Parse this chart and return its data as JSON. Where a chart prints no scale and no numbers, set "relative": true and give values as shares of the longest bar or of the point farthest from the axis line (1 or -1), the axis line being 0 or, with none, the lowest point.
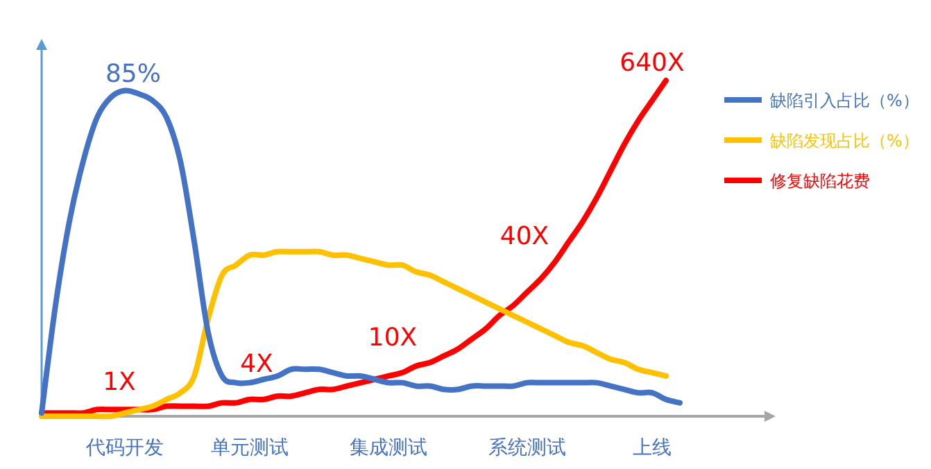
{
  "chart_data": {
    "type": "line",
    "relative": true,
    "categories": [
      null,
      null,
      null,
      null,
      null,
      null,
      "代码开发",
      null,
      null,
      null,
      null,
      null,
      null,
      null,
      null,
      "单元测试",
      null,
      null,
      null,
      null,
      null,
      null,
      null,
      null,
      null,
      "集成测试",
      null,
      null,
      null,
      null,
      null,
      null,
      null,
      null,
      null,
      "系统测试",
      null,
      null,
      null,
      null,
      null,
      null,
      null,
      null,
      "上线",
      null,
      null,
      null,
      null,
      null,
      null,
      null
    ],
    "legend": "right",
    "marker": "none",
    "line_style": "solid",
    "series": [
      {
        "name": "缺陷引入占比（%）",
        "color": "#4472c4",
        "values": [
          0.01,
          0.33,
          0.58,
          0.76,
          0.89,
          0.95,
          0.97,
          0.96,
          0.94,
          0.89,
          0.76,
          0.52,
          0.25,
          0.12,
          0.1,
          0.1,
          0.11,
          0.12,
          0.14,
          0.14,
          0.14,
          0.13,
          0.12,
          0.12,
          0.11,
          0.1,
          0.1,
          0.09,
          0.09,
          0.08,
          0.08,
          0.09,
          0.09,
          0.09,
          0.09,
          0.1,
          0.1,
          0.1,
          0.1,
          0.1,
          0.1,
          0.09,
          0.08,
          0.07,
          0.07,
          0.05,
          0.04,
          null,
          null,
          null,
          null,
          null
        ]
      },
      {
        "name": "缺陷发现占比（%）",
        "color": "#ffc000",
        "values": [
          0,
          0,
          0,
          0,
          0,
          0,
          0.01,
          0.02,
          0.03,
          0.05,
          0.07,
          0.12,
          0.29,
          0.42,
          0.45,
          0.48,
          0.48,
          0.49,
          0.49,
          0.49,
          0.49,
          0.48,
          0.48,
          0.47,
          0.46,
          0.45,
          0.45,
          0.43,
          0.42,
          0.4,
          0.38,
          0.36,
          0.34,
          0.32,
          0.3,
          0.28,
          0.26,
          0.24,
          0.22,
          0.21,
          0.19,
          0.17,
          0.16,
          0.14,
          0.13,
          0.12,
          null,
          null,
          null,
          null,
          null,
          null
        ]
      },
      {
        "name": "修复缺陷花费",
        "color": "#ff0000",
        "values": [
          0.01,
          0.01,
          0.01,
          0.01,
          0.02,
          0.02,
          0.02,
          0.02,
          0.02,
          0.03,
          0.03,
          0.03,
          0.03,
          0.04,
          0.04,
          0.05,
          0.05,
          0.06,
          0.06,
          0.07,
          0.08,
          0.08,
          0.09,
          0.1,
          0.11,
          0.12,
          0.13,
          0.15,
          0.16,
          0.18,
          0.2,
          0.23,
          0.26,
          0.3,
          0.33,
          0.37,
          0.41,
          0.46,
          0.52,
          0.58,
          0.65,
          0.73,
          0.81,
          0.88,
          0.94,
          1.0,
          null,
          null,
          null,
          null,
          null,
          null
        ]
      }
    ],
    "annotations": [
      "85%",
      "1X",
      "4X",
      "10X",
      "40X",
      "640X"
    ]
  }
}
